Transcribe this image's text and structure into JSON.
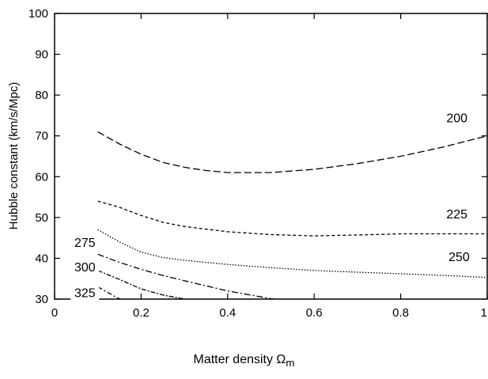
{
  "chart_data": {
    "type": "line",
    "title": "",
    "xlabel": "Matter density Ω",
    "xlabel_subscript": "m",
    "ylabel": "Hubble constant (km/s/Mpc)",
    "xlim": [
      0,
      1
    ],
    "ylim": [
      30,
      100
    ],
    "x_ticks": [
      0,
      0.2,
      0.4,
      0.6,
      0.8,
      1
    ],
    "x_tick_labels": [
      "0",
      "0.2",
      "0.4",
      "0.6",
      "0.8",
      "1"
    ],
    "y_ticks": [
      30,
      40,
      50,
      60,
      70,
      80,
      90,
      100
    ],
    "y_tick_labels": [
      "30",
      "40",
      "50",
      "60",
      "70",
      "80",
      "90",
      "100"
    ],
    "grid": false,
    "series": [
      {
        "name": "200",
        "dash": "9,4",
        "label_at": [
          0.93,
          73.5
        ],
        "x": [
          0.1,
          0.15,
          0.2,
          0.25,
          0.3,
          0.35,
          0.4,
          0.45,
          0.5,
          0.6,
          0.7,
          0.8,
          0.9,
          1.0
        ],
        "y": [
          71,
          68,
          65.5,
          63.5,
          62.3,
          61.5,
          61,
          61,
          61,
          61.8,
          63.2,
          65,
          67.3,
          70
        ]
      },
      {
        "name": "225",
        "dash": "4,3",
        "label_at": [
          0.93,
          50
        ],
        "x": [
          0.1,
          0.15,
          0.2,
          0.25,
          0.3,
          0.4,
          0.5,
          0.6,
          0.7,
          0.8,
          0.9,
          1.0
        ],
        "y": [
          54,
          52.5,
          50.5,
          48.8,
          47.8,
          46.5,
          45.8,
          45.5,
          45.7,
          46,
          46,
          46
        ]
      },
      {
        "name": "250",
        "dash": "1.5,2",
        "label_at": [
          0.935,
          39.5
        ],
        "x": [
          0.1,
          0.15,
          0.2,
          0.25,
          0.3,
          0.4,
          0.5,
          0.6,
          0.7,
          0.8,
          0.9,
          1.0
        ],
        "y": [
          47,
          44,
          41.5,
          40.2,
          39.5,
          38.5,
          37.7,
          37,
          36.6,
          36.2,
          35.8,
          35.3
        ]
      },
      {
        "name": "275",
        "dash": "8,3,2,3",
        "label_at": [
          0.07,
          43
        ],
        "x": [
          0.1,
          0.15,
          0.2,
          0.25,
          0.3,
          0.4,
          0.5,
          0.53
        ],
        "y": [
          41,
          39,
          37.3,
          35.8,
          34.5,
          32,
          30.1,
          29.6
        ]
      },
      {
        "name": "300",
        "dash": "6,2,2,2",
        "label_at": [
          0.07,
          37
        ],
        "x": [
          0.1,
          0.15,
          0.2,
          0.25,
          0.3,
          0.31
        ],
        "y": [
          37,
          34.8,
          32.5,
          31,
          30,
          29.8
        ]
      },
      {
        "name": "325",
        "dash": "6,3,2,3",
        "label_at": [
          0.07,
          30.7
        ],
        "x": [
          0.1,
          0.12,
          0.14,
          0.155
        ],
        "y": [
          33,
          31.8,
          30.6,
          29.8
        ]
      }
    ]
  }
}
